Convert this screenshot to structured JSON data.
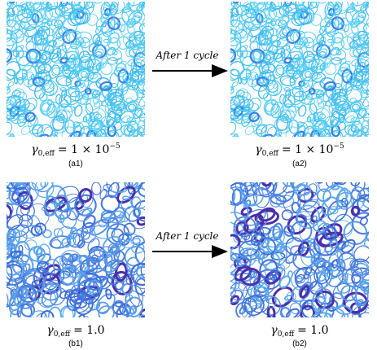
{
  "panels": [
    {
      "caption": {
        "symbol": "γ",
        "subscript": "0,eff",
        "relation": "= 1 × 10",
        "exponent": "−5"
      },
      "label": "(a1)"
    },
    {
      "caption": {
        "symbol": "γ",
        "subscript": "0,eff",
        "relation": "= 1 × 10",
        "exponent": "−5"
      },
      "label": "(a2)"
    },
    {
      "caption": {
        "symbol": "γ",
        "subscript": "0,eff",
        "relation": "= 1.0"
      },
      "label": "(b1)"
    },
    {
      "caption": {
        "symbol": "γ",
        "subscript": "0,eff",
        "relation": "= 1.0"
      },
      "label": "(b2)"
    }
  ],
  "arrows": [
    {
      "label": "After 1 cycle"
    },
    {
      "label": "After 1 cycle"
    }
  ]
}
